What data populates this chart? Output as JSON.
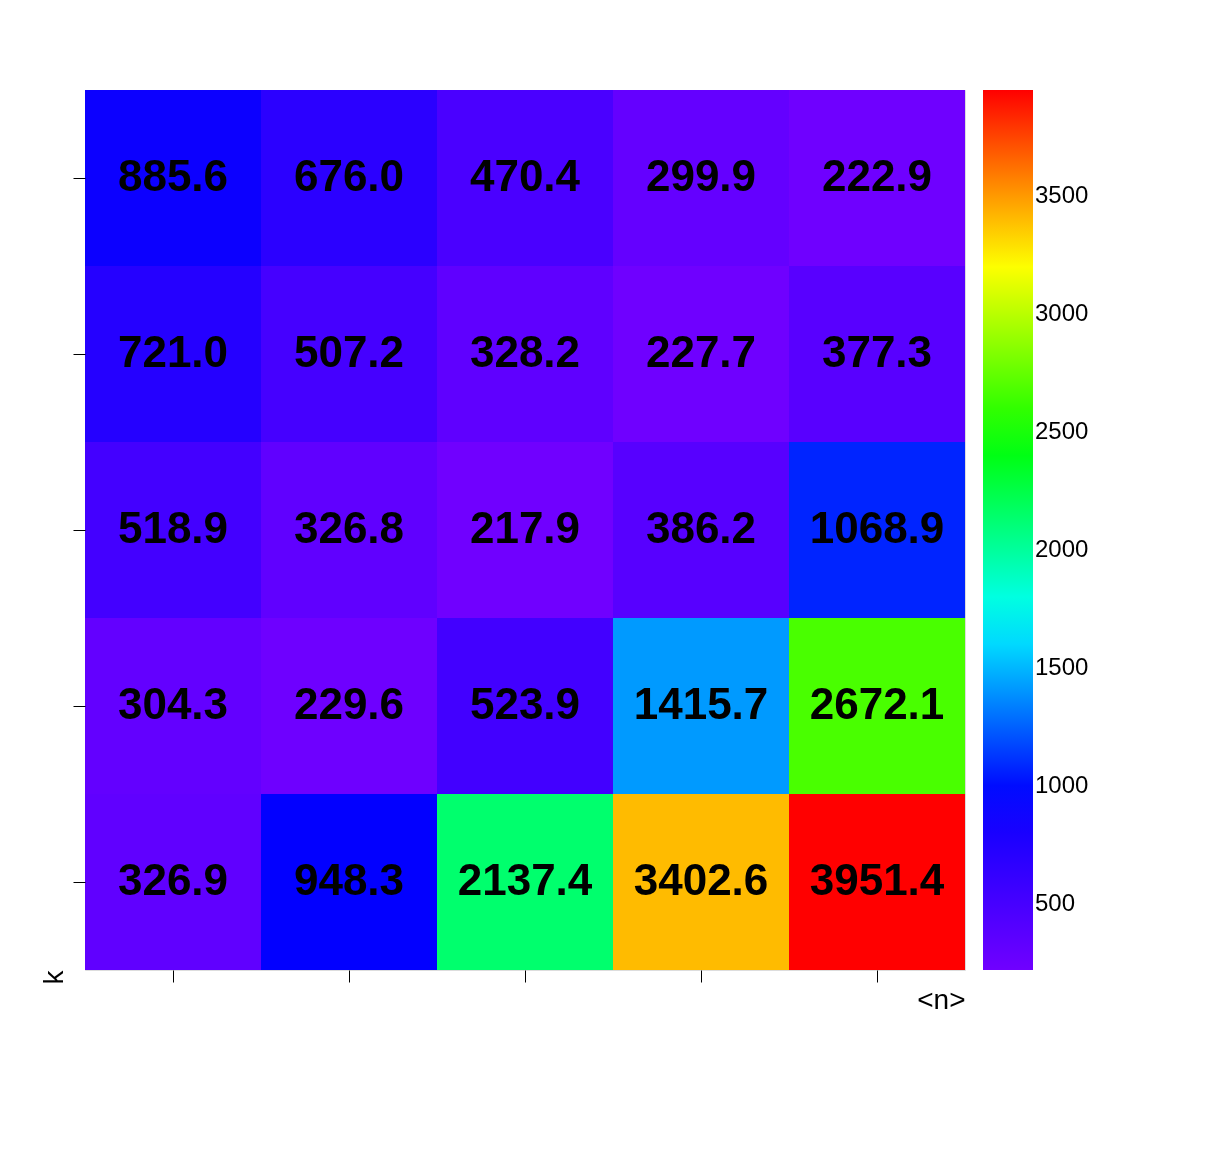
{
  "chart_data": {
    "type": "heatmap",
    "xlabel": "<n>",
    "ylabel": "k",
    "categories": [
      null,
      null,
      null,
      null,
      null
    ],
    "y_categories": [
      null,
      null,
      null,
      null,
      null
    ],
    "cells": [
      [
        885.6,
        676.0,
        470.4,
        299.9,
        222.9
      ],
      [
        721.0,
        507.2,
        328.2,
        227.7,
        377.3
      ],
      [
        518.9,
        326.8,
        217.9,
        386.2,
        1068.9
      ],
      [
        304.3,
        229.6,
        523.9,
        1415.7,
        2672.1
      ],
      [
        326.9,
        948.3,
        2137.4,
        3402.6,
        3951.4
      ]
    ],
    "cell_labels": [
      [
        "885.6",
        "676.0",
        "470.4",
        "299.9",
        "222.9"
      ],
      [
        "721.0",
        "507.2",
        "328.2",
        "227.7",
        "377.3"
      ],
      [
        "518.9",
        "326.8",
        "217.9",
        "386.2",
        "1068.9"
      ],
      [
        "304.3",
        "229.6",
        "523.9",
        "1415.7",
        "2672.1"
      ],
      [
        "326.9",
        "948.3",
        "2137.4",
        "3402.6",
        "3951.4"
      ]
    ],
    "clim": [
      218,
      3951
    ],
    "cticks": [
      500,
      1000,
      1500,
      2000,
      2500,
      3000,
      3500
    ],
    "data_labels": true,
    "tick_labels": false
  }
}
